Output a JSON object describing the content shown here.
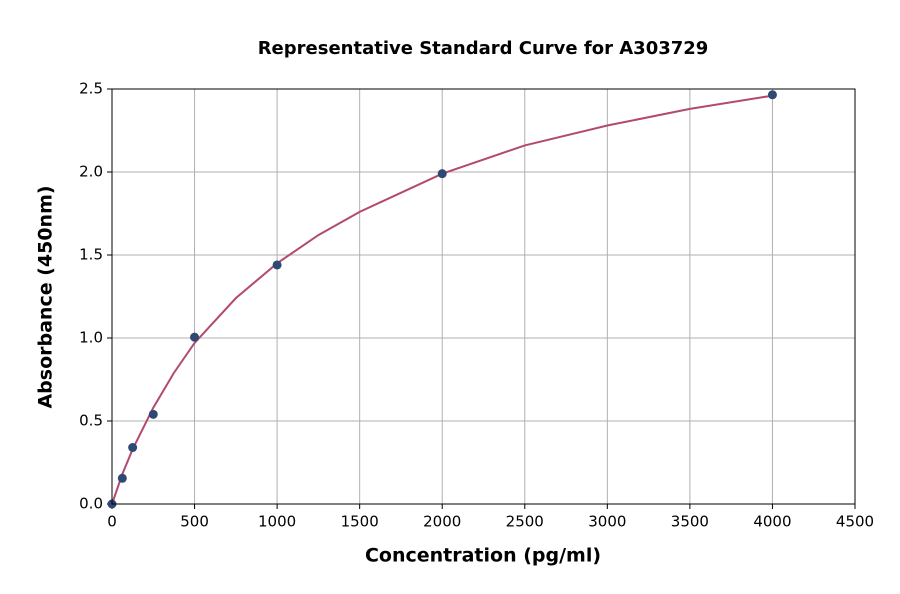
{
  "chart_data": {
    "type": "scatter",
    "title": "Representative Standard Curve for A303729",
    "x_label": "Concentration (pg/ml)",
    "y_label": "Absorbance (450nm)",
    "series": [
      {
        "type": "scatter",
        "color": "#2e4a74",
        "x": [
          0,
          62.5,
          125,
          250,
          500,
          1000,
          2000,
          4000
        ],
        "values": [
          0,
          0.155,
          0.34,
          0.54,
          1.005,
          1.44,
          1.99,
          2.465
        ]
      },
      {
        "type": "line",
        "color": "#b34a6c",
        "x": [
          0,
          62.5,
          125,
          250,
          375,
          500,
          750,
          1000,
          1250,
          1500,
          2000,
          2500,
          3000,
          3500,
          4000
        ],
        "values": [
          0,
          0.18,
          0.33,
          0.58,
          0.79,
          0.97,
          1.24,
          1.45,
          1.62,
          1.76,
          1.99,
          2.16,
          2.28,
          2.38,
          2.46
        ]
      }
    ],
    "xlim": [
      0,
      4500
    ],
    "ylim": [
      0,
      2.5
    ],
    "xticks": [
      0,
      500,
      1000,
      1500,
      2000,
      2500,
      3000,
      3500,
      4000,
      4500
    ],
    "yticks": [
      {
        "value": 0,
        "label": "0.0"
      },
      0.5,
      {
        "value": 1,
        "label": "1.0"
      },
      1.5,
      {
        "value": 2,
        "label": "2.0"
      },
      2.5
    ],
    "grid": true
  }
}
